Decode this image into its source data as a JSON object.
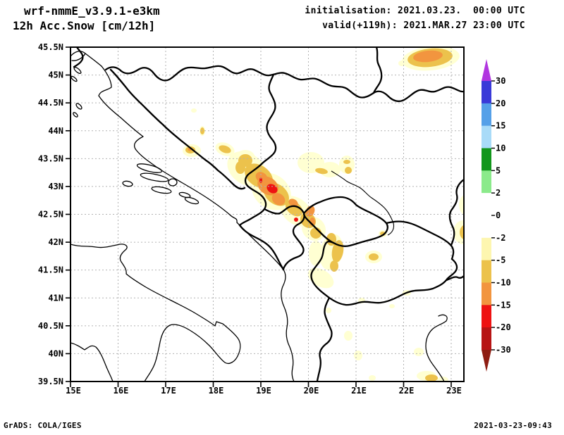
{
  "header": {
    "model": "wrf-nmmE_v3.9.1-e3km",
    "product": "12h Acc.Snow [cm/12h]",
    "init_label": "initialisation: 2021.03.23.  00:00 UTC",
    "valid_label": "valid(+119h): 2021.MAR.27 23:00 UTC"
  },
  "footer": {
    "left": "GrADS: COLA/IGES",
    "right": "2021-03-23-09:43"
  },
  "map": {
    "lat_min": "39.5N",
    "lat_max": "45.5N",
    "lon_min": "15E",
    "lon_max": "23E",
    "region": "Adriatic / Balkans",
    "shading_note": "accumulated snow shaded areas over Bosnia, Montenegro, Serbia, Kosovo, Macedonia"
  },
  "axes": {
    "lat_labels": [
      "45.5N",
      "45N",
      "44.5N",
      "44N",
      "43.5N",
      "43N",
      "42.5N",
      "42N",
      "41.5N",
      "41N",
      "40.5N",
      "40N",
      "39.5N"
    ],
    "lon_labels": [
      "15E",
      "16E",
      "17E",
      "18E",
      "19E",
      "20E",
      "21E",
      "22E",
      "23E"
    ]
  },
  "colorbar": {
    "labels": [
      "30",
      "20",
      "15",
      "10",
      "5",
      "2",
      "0",
      "-2",
      "-5",
      "-10",
      "-15",
      "-20",
      "-30"
    ],
    "segment_colors": [
      "#3a3ad8",
      "#55a0e8",
      "#a9dbf8",
      "#12961b",
      "#8bea8b",
      "#ffffff",
      "#ffffff",
      "#fdf6b0",
      "#ecc24c",
      "#f2953f",
      "#ee1212",
      "#b71414"
    ],
    "top_arrow_color": "#b136e0",
    "bottom_arrow_color": "#8e1d12"
  },
  "palette": {
    "pale": "#ffffd2",
    "gold": "#ecc24c",
    "orng": "#f2953f",
    "red": "#ee1212",
    "grid": "#b2b2b2"
  }
}
